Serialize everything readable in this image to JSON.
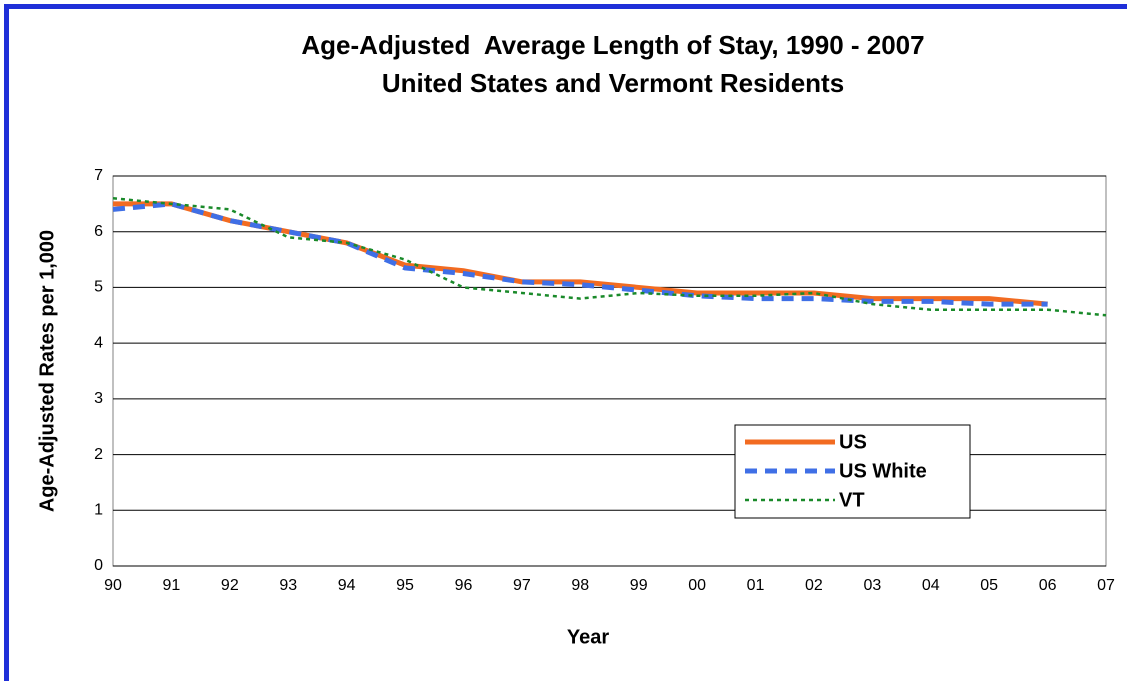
{
  "chart_data": {
    "type": "line",
    "title": "Age-Adjusted  Average Length of Stay, 1990 - 2007",
    "subtitle": "United States and Vermont Residents",
    "x_label": "Year",
    "y_label": "Age-Adjusted Rates per 1,000",
    "categories": [
      "90",
      "91",
      "92",
      "93",
      "94",
      "95",
      "96",
      "97",
      "98",
      "99",
      "00",
      "01",
      "02",
      "03",
      "04",
      "05",
      "06",
      "07"
    ],
    "series": [
      {
        "name": "US",
        "color": "#f26b21",
        "style": "solid",
        "values": [
          6.5,
          6.5,
          6.2,
          6.0,
          5.8,
          5.4,
          5.3,
          5.1,
          5.1,
          5.0,
          4.9,
          4.9,
          4.9,
          4.8,
          4.8,
          4.8,
          4.7,
          null
        ]
      },
      {
        "name": "US White",
        "color": "#3f6fe6",
        "style": "dashed",
        "values": [
          6.4,
          6.5,
          6.2,
          6.0,
          5.8,
          5.35,
          5.25,
          5.1,
          5.05,
          4.95,
          4.85,
          4.8,
          4.8,
          4.75,
          4.75,
          4.7,
          4.7,
          null
        ]
      },
      {
        "name": "VT",
        "color": "#1a8a2a",
        "style": "dotted",
        "values": [
          6.6,
          6.5,
          6.4,
          5.9,
          5.8,
          5.5,
          5.0,
          4.9,
          4.8,
          4.9,
          4.85,
          4.85,
          4.9,
          4.7,
          4.6,
          4.6,
          4.6,
          4.5
        ]
      }
    ],
    "ylim": [
      0,
      7
    ],
    "yticks": [
      0,
      1,
      2,
      3,
      4,
      5,
      6,
      7
    ],
    "grid": true,
    "legend": "lower right"
  }
}
